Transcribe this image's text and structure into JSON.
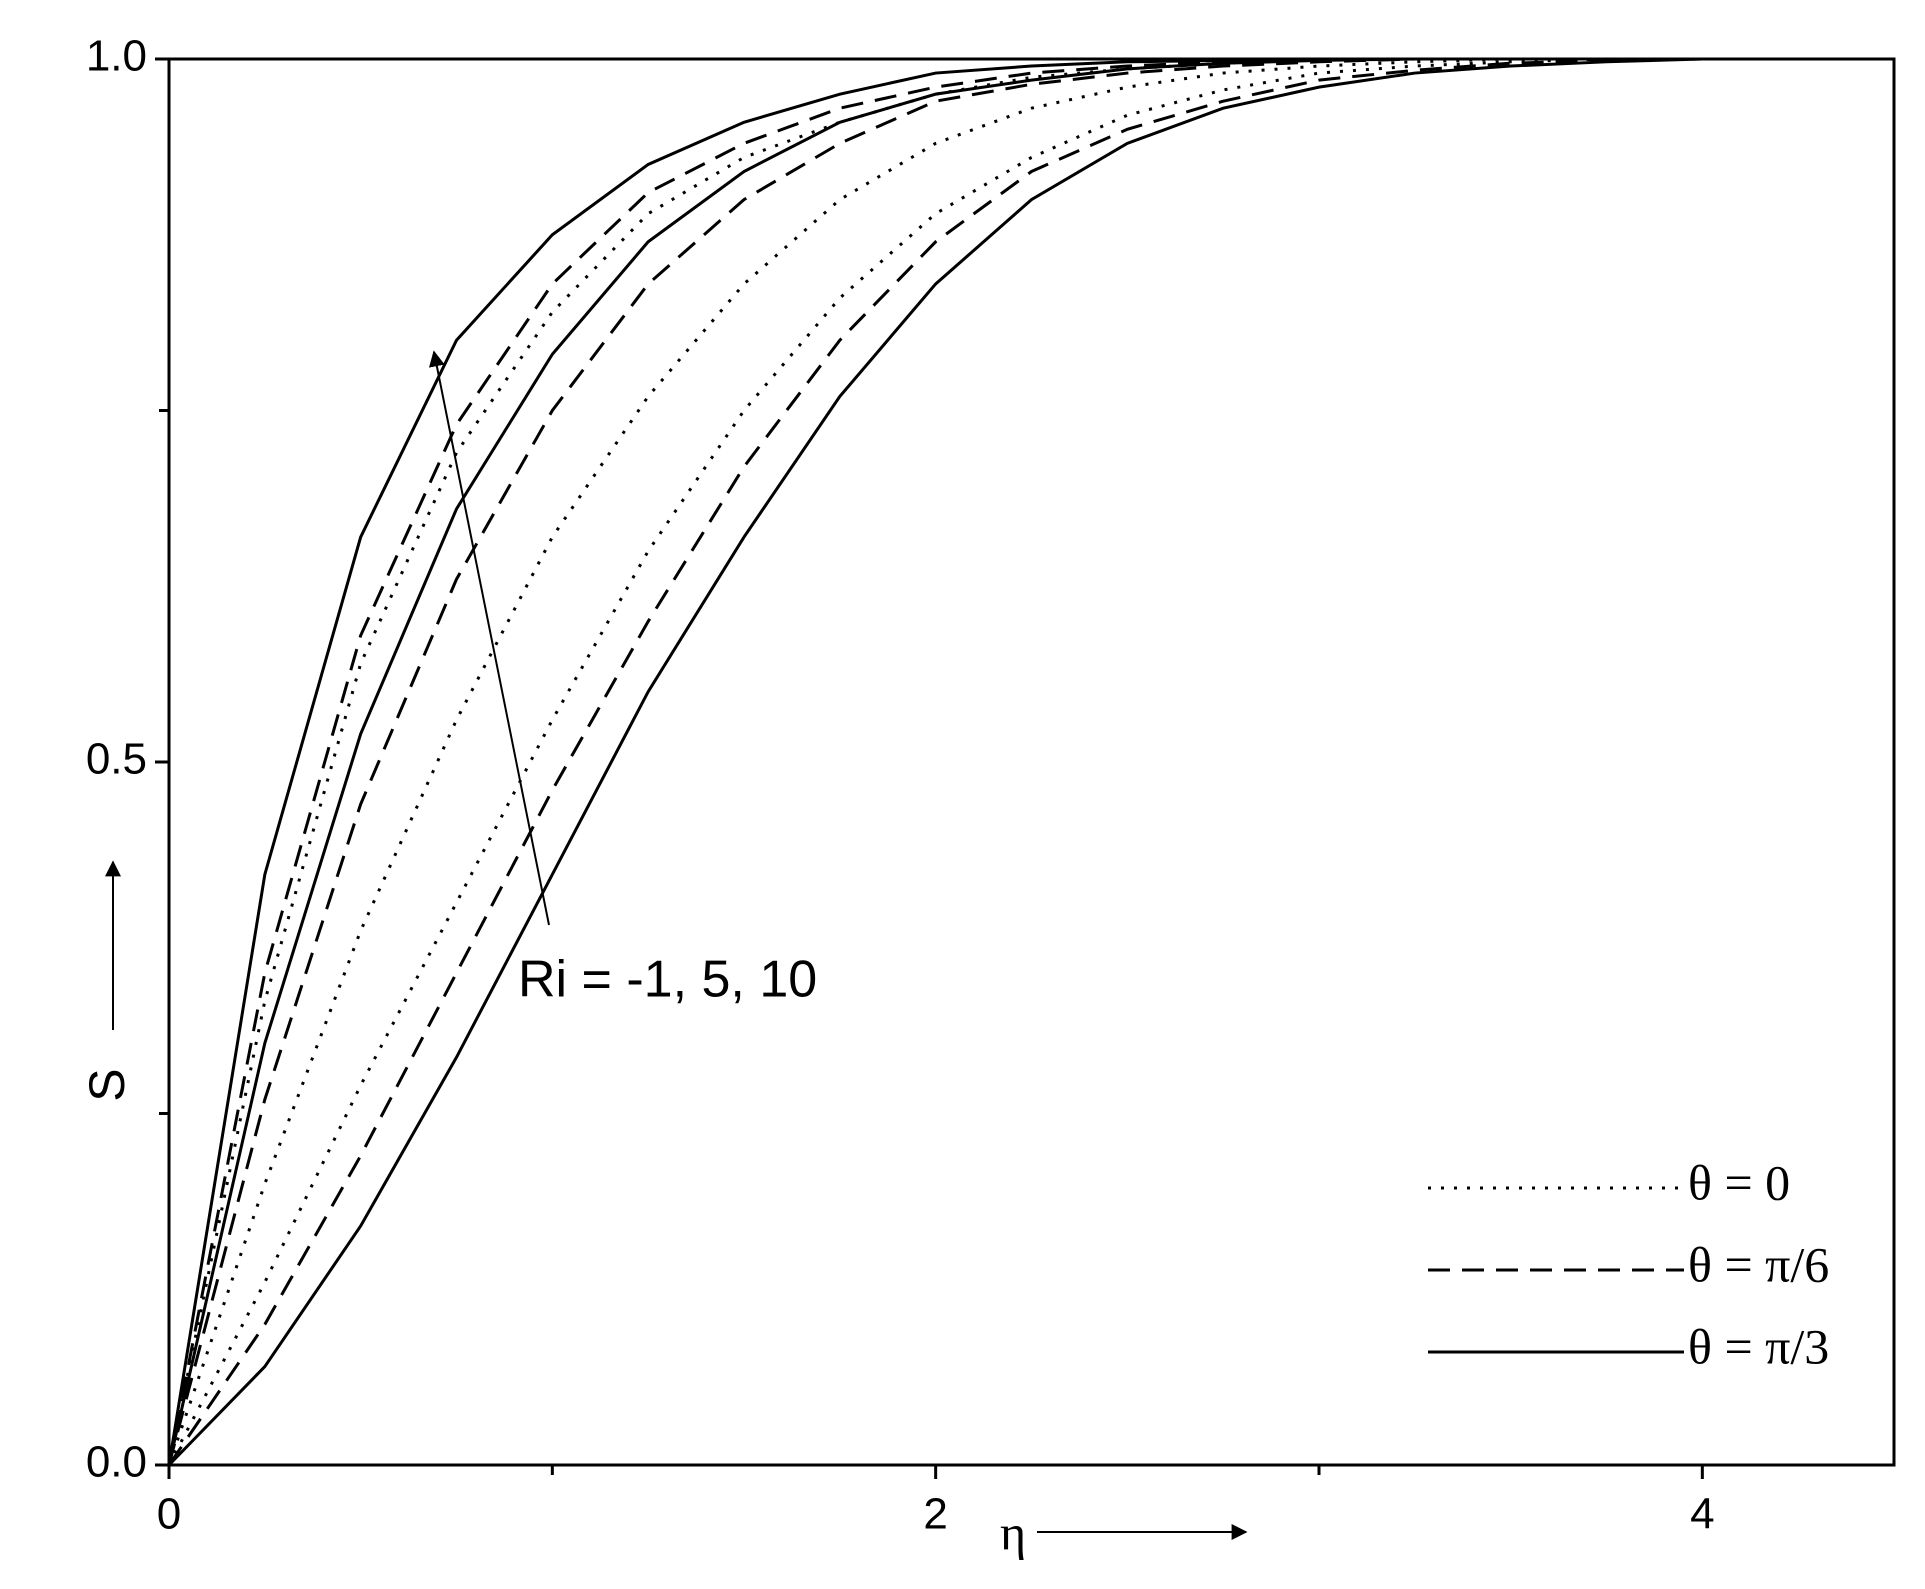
{
  "chart_data": {
    "type": "line",
    "xlabel": "η",
    "ylabel": "S",
    "annotation": "Ri = -1, 5, 10",
    "x": [
      0,
      0.25,
      0.5,
      0.75,
      1,
      1.25,
      1.5,
      1.75,
      2,
      2.25,
      2.5,
      2.75,
      3,
      3.25,
      3.5,
      3.75,
      4,
      4.25,
      4.5
    ],
    "xlim": [
      0,
      4.5
    ],
    "xticks": [
      0,
      2,
      4
    ],
    "xminorticks": [
      1,
      3
    ],
    "ylim": [
      0,
      1
    ],
    "yticks": [
      {
        "value": 0,
        "label": "0.0"
      },
      {
        "value": 0.5,
        "label": "0.5"
      },
      {
        "value": 1,
        "label": "1.0"
      }
    ],
    "yminorticks": [
      0.25,
      0.75
    ],
    "legend": "lower right",
    "series": [
      {
        "name": "θ = 0",
        "color": "#000000",
        "dash": "dotted",
        "lines": [
          [
            0,
            0.33,
            0.57,
            0.72,
            0.82,
            0.89,
            0.93,
            0.955,
            0.975,
            0.987,
            0.993,
            0.997,
            1,
            1,
            1,
            1,
            1,
            1,
            1
          ],
          [
            0,
            0.2,
            0.38,
            0.53,
            0.66,
            0.76,
            0.84,
            0.9,
            0.94,
            0.965,
            0.98,
            0.99,
            0.995,
            0.998,
            1,
            1,
            1,
            1,
            1
          ],
          [
            0,
            0.13,
            0.27,
            0.4,
            0.53,
            0.65,
            0.75,
            0.83,
            0.89,
            0.93,
            0.96,
            0.978,
            0.99,
            0.995,
            0.998,
            1,
            1,
            1,
            1
          ]
        ]
      },
      {
        "name": "θ = π/6",
        "color": "#000000",
        "dash": "dashed",
        "lines": [
          [
            0,
            0.35,
            0.59,
            0.74,
            0.84,
            0.905,
            0.94,
            0.965,
            0.98,
            0.99,
            0.995,
            0.998,
            1,
            1,
            1,
            1,
            1,
            1,
            1
          ],
          [
            0,
            0.26,
            0.47,
            0.63,
            0.75,
            0.84,
            0.9,
            0.94,
            0.97,
            0.982,
            0.99,
            0.995,
            0.998,
            1,
            1,
            1,
            1,
            1,
            1
          ],
          [
            0,
            0.1,
            0.22,
            0.35,
            0.48,
            0.6,
            0.71,
            0.8,
            0.87,
            0.92,
            0.95,
            0.97,
            0.985,
            0.992,
            0.997,
            0.999,
            1,
            1,
            1
          ]
        ]
      },
      {
        "name": "θ = π/3",
        "color": "#000000",
        "dash": "solid",
        "lines": [
          [
            0,
            0.42,
            0.66,
            0.8,
            0.875,
            0.925,
            0.955,
            0.975,
            0.99,
            0.995,
            0.998,
            0.999,
            1,
            1,
            1,
            1,
            1,
            1,
            1
          ],
          [
            0,
            0.3,
            0.52,
            0.68,
            0.79,
            0.87,
            0.92,
            0.955,
            0.975,
            0.985,
            0.993,
            0.997,
            0.999,
            1,
            1,
            1,
            1,
            1,
            1
          ],
          [
            0,
            0.07,
            0.17,
            0.29,
            0.42,
            0.55,
            0.66,
            0.76,
            0.84,
            0.9,
            0.94,
            0.965,
            0.98,
            0.99,
            0.995,
            0.998,
            1,
            1,
            1
          ]
        ]
      }
    ]
  }
}
